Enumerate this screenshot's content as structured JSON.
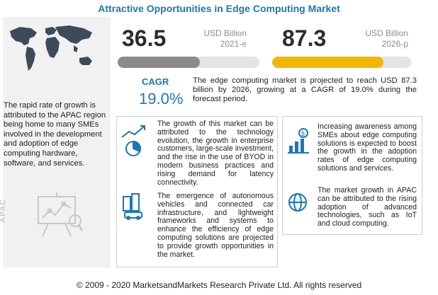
{
  "title": "Attractive Opportunities in Edge Computing Market",
  "left_panel": {
    "text": "The rapid rate of growth is attributed to the APAC region being home to many SMEs involved in the development and adoption of edge computing hardware, software, and services.",
    "region_label": "APAC"
  },
  "stats": [
    {
      "value": "36.5",
      "unit": "USD Billion",
      "year": "2021-e",
      "progress": 0.58,
      "color": "#8a8a8a"
    },
    {
      "value": "87.3",
      "unit": "USD Billion",
      "year": "2026-p",
      "progress": 0.8,
      "color": "#f2b705"
    }
  ],
  "cagr": {
    "label": "CAGR",
    "value": "19.0%",
    "text": "The edge computing market is projected to reach USD 87.3 billion by 2026, growing at a CAGR of 19.0% during the forecast period."
  },
  "insights": [
    {
      "icon": "growth-chart-icon",
      "text": "The growth of this market can be attributed to the technology evolution, the growth in enterprise customers, large-scale investment, and the rise in the use of BYOD in modern business practices and rising demand for latency connectivity."
    },
    {
      "icon": "city-vehicle-icon",
      "text": "The emergence of autonomous vehicles and connected car infrastructure, and lightweight frameworks and systems to enhance the efficiency of edge computing solutions are projected to provide growth opportunities in the market."
    },
    {
      "icon": "dollar-bar-chart-icon",
      "text": "Increasing awareness among SMEs about edge computing solutions is expected to boost the growth in the adoption rates of edge computing solutions and services."
    },
    {
      "icon": "globe-icon",
      "text": "The market growth in APAC can be attributed to the rising adoption of advanced technologies, such as IoT and cloud computing."
    }
  ],
  "footer": "© 2009 - 2020 MarketsandMarkets Research Private Ltd. All rights reserved"
}
